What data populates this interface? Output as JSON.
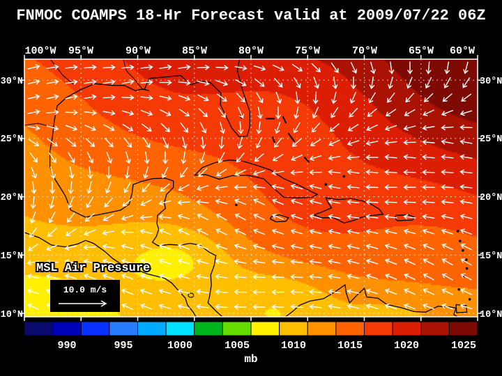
{
  "title": "FNMOC COAMPS 18-Hr Forecast valid at 2009/07/22 06Z",
  "map": {
    "overlay_label": "MSL Air Pressure",
    "wind_scale_label": "10.0 m/s",
    "lon_labels": [
      "100°W",
      "95°W",
      "90°W",
      "85°W",
      "80°W",
      "75°W",
      "70°W",
      "65°W",
      "60°W"
    ],
    "lat_labels": [
      "30°N",
      "25°N",
      "20°N",
      "15°N",
      "10°N"
    ]
  },
  "colorbar": {
    "unit_label": "mb",
    "tick_labels": [
      "990",
      "995",
      "1000",
      "1005",
      "1010",
      "1015",
      "1020",
      "1025"
    ],
    "colors": [
      "#0a0a6e",
      "#0000b9",
      "#0a32ff",
      "#2a7cff",
      "#00aaff",
      "#00e1ff",
      "#00b41e",
      "#64dc00",
      "#fff000",
      "#ffbe00",
      "#ff9100",
      "#ff6400",
      "#f53a05",
      "#dc1e05",
      "#aa1204",
      "#7d0a03"
    ]
  },
  "chart_data": {
    "type": "heatmap",
    "title": "FNMOC COAMPS 18-Hr Forecast valid at 2009/07/22 06Z",
    "variable": "MSL Air Pressure",
    "unit": "mb",
    "lon_ticks_deg_w": [
      100,
      95,
      90,
      85,
      80,
      75,
      70,
      65,
      60
    ],
    "lat_ticks_deg_n": [
      30,
      25,
      20,
      15,
      10
    ],
    "colorbar_values_mb": [
      990,
      995,
      1000,
      1005,
      1010,
      1015,
      1020,
      1025
    ],
    "field_range_on_map_mb": [
      1007,
      1026
    ],
    "wind_reference_speed": "10.0 m/s",
    "legend_position": "bottom"
  }
}
